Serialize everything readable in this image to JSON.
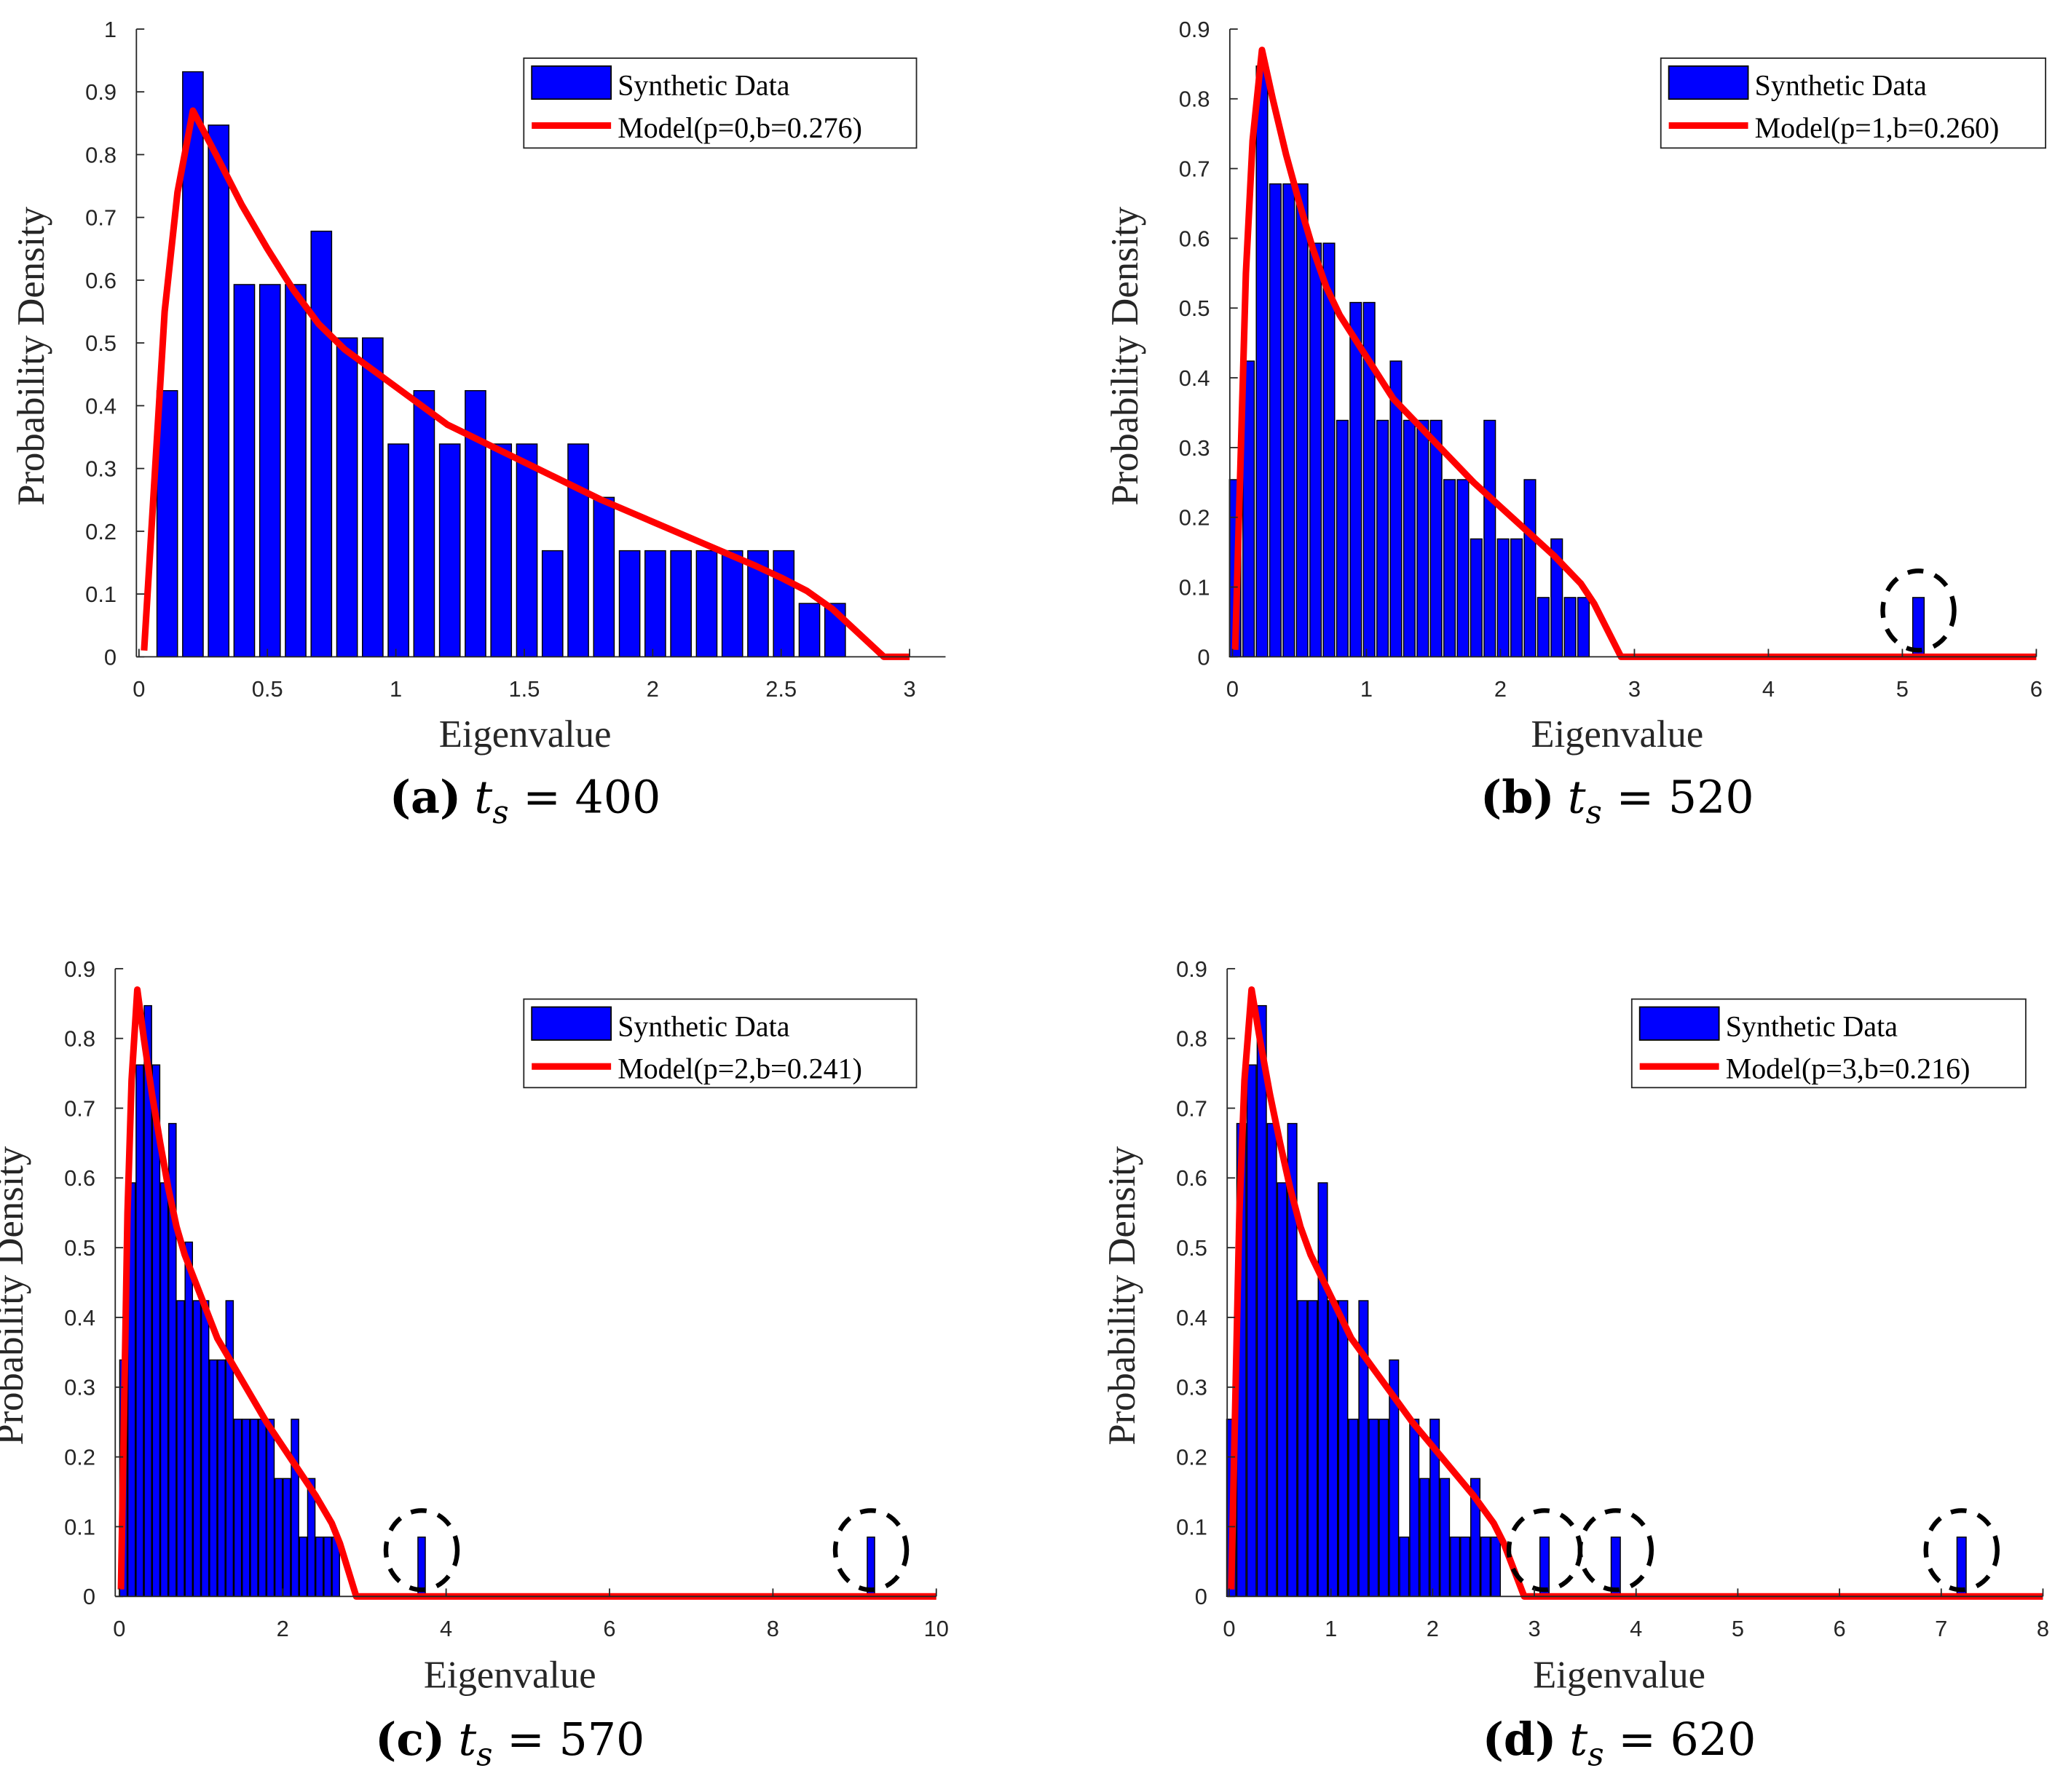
{
  "chart_data": [
    {
      "type": "bar",
      "panel": "a",
      "caption": {
        "label": "(a)",
        "var": "t",
        "sub": "s",
        "value": " = 400"
      },
      "xlabel": "Eigenvalue",
      "ylabel": "Probability Density",
      "xlim": [
        -0.01,
        3.14
      ],
      "ylim": [
        0,
        1
      ],
      "xticks": [
        0,
        0.5,
        1,
        1.5,
        2,
        2.5,
        3
      ],
      "xtick_labels": [
        "0",
        "0.5",
        "1",
        "1.5",
        "2",
        "2.5",
        "3"
      ],
      "yticks": [
        0,
        0.1,
        0.2,
        0.3,
        0.4,
        0.5,
        0.6,
        0.7,
        0.8,
        0.9,
        1
      ],
      "ytick_labels": [
        "0",
        "0.1",
        "0.2",
        "0.3",
        "0.4",
        "0.5",
        "0.6",
        "0.7",
        "0.8",
        "0.9",
        "1"
      ],
      "legend": {
        "placement": "top-right",
        "bars": "Synthetic Data",
        "line": "Model(p=0,b=0.276)"
      },
      "bar_width": 0.08,
      "bars": {
        "x": [
          0.11,
          0.21,
          0.31,
          0.41,
          0.51,
          0.61,
          0.71,
          0.81,
          0.91,
          1.01,
          1.11,
          1.21,
          1.31,
          1.41,
          1.51,
          1.61,
          1.71,
          1.81,
          1.91,
          2.01,
          2.11,
          2.21,
          2.31,
          2.41,
          2.51,
          2.61,
          2.71
        ],
        "y": [
          0.424,
          0.932,
          0.847,
          0.593,
          0.593,
          0.593,
          0.678,
          0.508,
          0.508,
          0.339,
          0.424,
          0.339,
          0.424,
          0.339,
          0.339,
          0.169,
          0.339,
          0.254,
          0.169,
          0.169,
          0.169,
          0.169,
          0.169,
          0.169,
          0.169,
          0.085,
          0.085
        ]
      },
      "model": {
        "x": [
          0.02,
          0.1,
          0.15,
          0.21,
          0.3,
          0.4,
          0.5,
          0.6,
          0.7,
          0.8,
          0.9,
          1.0,
          1.2,
          1.4,
          1.5,
          1.6,
          1.8,
          2.0,
          2.2,
          2.4,
          2.5,
          2.6,
          2.7,
          2.9,
          3.0
        ],
        "y": [
          0.01,
          0.55,
          0.74,
          0.87,
          0.8,
          0.72,
          0.65,
          0.585,
          0.53,
          0.49,
          0.46,
          0.43,
          0.37,
          0.33,
          0.31,
          0.29,
          0.25,
          0.215,
          0.18,
          0.145,
          0.126,
          0.105,
          0.076,
          0,
          0
        ]
      },
      "outliers": []
    },
    {
      "type": "bar",
      "panel": "b",
      "caption": {
        "label": "(b)",
        "var": "t",
        "sub": "s",
        "value": " = 520"
      },
      "xlabel": "Eigenvalue",
      "ylabel": "Probability Density",
      "xlim": [
        -0.02,
        6
      ],
      "ylim": [
        0,
        0.9
      ],
      "xticks": [
        0,
        1,
        2,
        3,
        4,
        5,
        6
      ],
      "xtick_labels": [
        "0",
        "1",
        "2",
        "3",
        "4",
        "5",
        "6"
      ],
      "yticks": [
        0,
        0.1,
        0.2,
        0.3,
        0.4,
        0.5,
        0.6,
        0.7,
        0.8,
        0.9
      ],
      "ytick_labels": [
        "0",
        "0.1",
        "0.2",
        "0.3",
        "0.4",
        "0.5",
        "0.6",
        "0.7",
        "0.8",
        "0.9"
      ],
      "legend": {
        "placement": "top-right",
        "bars": "Synthetic Data",
        "line": "Model(p=1,b=0.260)"
      },
      "bar_width": 0.085,
      "bars": {
        "x": [
          0.02,
          0.12,
          0.22,
          0.32,
          0.42,
          0.52,
          0.62,
          0.72,
          0.82,
          0.92,
          1.02,
          1.12,
          1.22,
          1.32,
          1.42,
          1.52,
          1.62,
          1.72,
          1.82,
          1.92,
          2.02,
          2.12,
          2.22,
          2.32,
          2.42,
          2.52,
          2.62,
          5.12
        ],
        "y": [
          0.254,
          0.424,
          0.847,
          0.678,
          0.678,
          0.678,
          0.593,
          0.593,
          0.339,
          0.508,
          0.508,
          0.339,
          0.424,
          0.339,
          0.339,
          0.339,
          0.254,
          0.254,
          0.169,
          0.339,
          0.169,
          0.169,
          0.254,
          0.085,
          0.169,
          0.085,
          0.085,
          0.085
        ]
      },
      "model": {
        "x": [
          0.02,
          0.1,
          0.15,
          0.22,
          0.3,
          0.4,
          0.5,
          0.6,
          0.7,
          0.8,
          0.9,
          1.0,
          1.2,
          1.4,
          1.6,
          1.8,
          2.0,
          2.2,
          2.4,
          2.6,
          2.7,
          2.9,
          6.0
        ],
        "y": [
          0.01,
          0.55,
          0.74,
          0.87,
          0.8,
          0.72,
          0.65,
          0.585,
          0.53,
          0.49,
          0.46,
          0.43,
          0.37,
          0.33,
          0.29,
          0.25,
          0.215,
          0.18,
          0.145,
          0.105,
          0.076,
          0,
          0
        ]
      },
      "outliers": [
        5.12
      ]
    },
    {
      "type": "bar",
      "panel": "c",
      "caption": {
        "label": "(c)",
        "var": "t",
        "sub": "s",
        "value": " = 570"
      },
      "xlabel": "Eigenvalue",
      "ylabel": "Probability Density",
      "xlim": [
        -0.05,
        10
      ],
      "ylim": [
        0,
        0.9
      ],
      "xticks": [
        0,
        2,
        4,
        6,
        8,
        10
      ],
      "xtick_labels": [
        "0",
        "2",
        "4",
        "6",
        "8",
        "10"
      ],
      "yticks": [
        0,
        0.1,
        0.2,
        0.3,
        0.4,
        0.5,
        0.6,
        0.7,
        0.8,
        0.9
      ],
      "ytick_labels": [
        "0",
        "0.1",
        "0.2",
        "0.3",
        "0.4",
        "0.5",
        "0.6",
        "0.7",
        "0.8",
        "0.9"
      ],
      "legend": {
        "placement": "top-right",
        "bars": "Synthetic Data",
        "line": "Model(p=2,b=0.241)"
      },
      "bar_width": 0.09,
      "bars": {
        "x": [
          0.05,
          0.15,
          0.25,
          0.35,
          0.45,
          0.55,
          0.65,
          0.75,
          0.85,
          0.95,
          1.05,
          1.15,
          1.25,
          1.35,
          1.45,
          1.55,
          1.65,
          1.75,
          1.85,
          1.95,
          2.05,
          2.15,
          2.25,
          2.35,
          2.45,
          2.55,
          2.65,
          3.7,
          9.2
        ],
        "y": [
          0.339,
          0.593,
          0.762,
          0.847,
          0.762,
          0.593,
          0.678,
          0.424,
          0.508,
          0.424,
          0.424,
          0.339,
          0.339,
          0.424,
          0.254,
          0.254,
          0.254,
          0.254,
          0.254,
          0.169,
          0.169,
          0.254,
          0.085,
          0.169,
          0.085,
          0.085,
          0.085,
          0.085,
          0.085
        ]
      },
      "model": {
        "x": [
          0.02,
          0.1,
          0.15,
          0.22,
          0.3,
          0.4,
          0.5,
          0.6,
          0.7,
          0.8,
          0.9,
          1.0,
          1.2,
          1.4,
          1.6,
          1.8,
          2.0,
          2.2,
          2.4,
          2.6,
          2.7,
          2.9,
          10.0
        ],
        "y": [
          0.01,
          0.55,
          0.74,
          0.87,
          0.8,
          0.72,
          0.65,
          0.585,
          0.53,
          0.49,
          0.46,
          0.43,
          0.37,
          0.33,
          0.29,
          0.25,
          0.215,
          0.18,
          0.145,
          0.105,
          0.076,
          0,
          0
        ]
      },
      "outliers": [
        3.7,
        9.2
      ]
    },
    {
      "type": "bar",
      "panel": "d",
      "caption": {
        "label": "(d)",
        "var": "t",
        "sub": "s",
        "value": " = 620"
      },
      "xlabel": "Eigenvalue",
      "ylabel": "Probability Density",
      "xlim": [
        -0.02,
        8
      ],
      "ylim": [
        0,
        0.9
      ],
      "xticks": [
        0,
        1,
        2,
        3,
        4,
        5,
        6,
        7,
        8
      ],
      "xtick_labels": [
        "0",
        "1",
        "2",
        "3",
        "4",
        "5",
        "6",
        "7",
        "8"
      ],
      "yticks": [
        0,
        0.1,
        0.2,
        0.3,
        0.4,
        0.5,
        0.6,
        0.7,
        0.8,
        0.9
      ],
      "ytick_labels": [
        "0",
        "0.1",
        "0.2",
        "0.3",
        "0.4",
        "0.5",
        "0.6",
        "0.7",
        "0.8",
        "0.9"
      ],
      "legend": {
        "placement": "top-right",
        "bars": "Synthetic Data",
        "line": "Model(p=3,b=0.216)"
      },
      "bar_width": 0.09,
      "bars": {
        "x": [
          0.02,
          0.12,
          0.22,
          0.32,
          0.42,
          0.52,
          0.62,
          0.72,
          0.82,
          0.92,
          1.02,
          1.12,
          1.22,
          1.32,
          1.42,
          1.52,
          1.62,
          1.72,
          1.82,
          1.92,
          2.02,
          2.12,
          2.22,
          2.32,
          2.42,
          2.52,
          2.62,
          3.1,
          3.8,
          7.2
        ],
        "y": [
          0.254,
          0.678,
          0.762,
          0.847,
          0.678,
          0.593,
          0.678,
          0.424,
          0.424,
          0.593,
          0.424,
          0.424,
          0.254,
          0.424,
          0.254,
          0.254,
          0.339,
          0.085,
          0.254,
          0.169,
          0.254,
          0.169,
          0.085,
          0.085,
          0.169,
          0.085,
          0.085,
          0.085,
          0.085,
          0.085
        ]
      },
      "model": {
        "x": [
          0.02,
          0.1,
          0.15,
          0.22,
          0.3,
          0.4,
          0.5,
          0.6,
          0.7,
          0.8,
          0.9,
          1.0,
          1.2,
          1.4,
          1.6,
          1.8,
          2.0,
          2.2,
          2.4,
          2.6,
          2.7,
          2.9,
          8.0
        ],
        "y": [
          0.01,
          0.55,
          0.74,
          0.87,
          0.8,
          0.72,
          0.65,
          0.585,
          0.53,
          0.49,
          0.46,
          0.43,
          0.37,
          0.33,
          0.29,
          0.25,
          0.215,
          0.18,
          0.145,
          0.105,
          0.076,
          0,
          0
        ]
      },
      "outliers": [
        3.1,
        3.8,
        7.2
      ]
    }
  ],
  "colors": {
    "bars": "#0000FF",
    "model": "#FF0000",
    "outline": "#000000"
  }
}
